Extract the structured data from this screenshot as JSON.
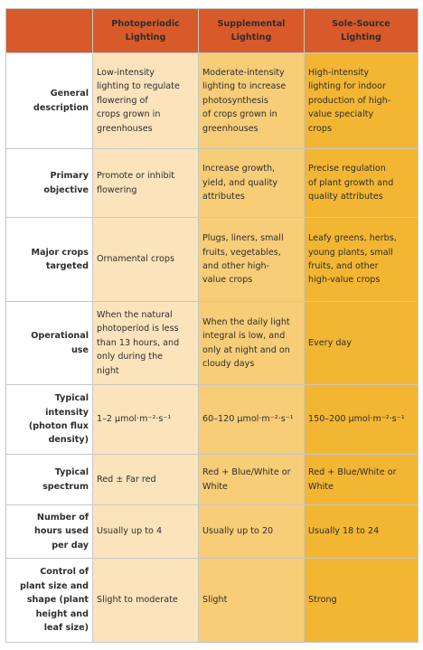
{
  "columns": [
    "Photoperiodic\nLighting",
    "Supplemental\nLighting",
    "Sole-Source\nLighting"
  ],
  "rows": [
    {
      "label": "General\ndescription",
      "cells": [
        "Low-intensity\nlighting to regulate\nflowering of\ncrops grown in\ngreenhouses",
        "Moderate-intensity\nlighting to increase\nphotosynthesis\nof crops grown in\ngreenhouses",
        "High-intensity\nlighting for indoor\nproduction of high-\nvalue specialty\ncrops"
      ]
    },
    {
      "label": "Primary\nobjective",
      "cells": [
        "Promote or inhibit\nflowering",
        "Increase growth,\nyield, and quality\nattributes",
        "Precise regulation\nof plant growth and\nquality attributes"
      ]
    },
    {
      "label": "Major crops\ntargeted",
      "cells": [
        "Ornamental crops",
        "Plugs, liners, small\nfruits, vegetables,\nand other high-\nvalue crops",
        "Leafy greens, herbs,\nyoung plants, small\nfruits, and other\nhigh-value crops"
      ]
    },
    {
      "label": "Operational\nuse",
      "cells": [
        "When the natural\nphotoperiod is less\nthan 13 hours, and\nonly during the\nnight",
        "When the daily light\nintegral is low, and\nonly at night and on\ncloudy days",
        "Every day"
      ]
    },
    {
      "label": "Typical\nintensity\n(photon flux\ndensity)",
      "cells": [
        "1–2 µmol·m⁻²·s⁻¹",
        "60–120 µmol·m⁻²·s⁻¹",
        "150–200 µmol·m⁻²·s⁻¹"
      ]
    },
    {
      "label": "Typical\nspectrum",
      "cells": [
        "Red ± Far red",
        "Red + Blue/White or\nWhite",
        "Red + Blue/White or\nWhite"
      ]
    },
    {
      "label": "Number of\nhours used\nper day",
      "cells": [
        "Usually up to 4",
        "Usually up to 20",
        "Usually 18 to 24"
      ]
    },
    {
      "label": "Control of\nplant size and\nshape (plant\nheight and\nleaf size)",
      "cells": [
        "Slight to moderate",
        "Slight",
        "Strong"
      ]
    }
  ],
  "colors": {
    "header": "#d85a2a",
    "photoperiodic": "#fbe4bc",
    "supplemental": "#f7cd78",
    "sole_source": "#f3b632"
  }
}
